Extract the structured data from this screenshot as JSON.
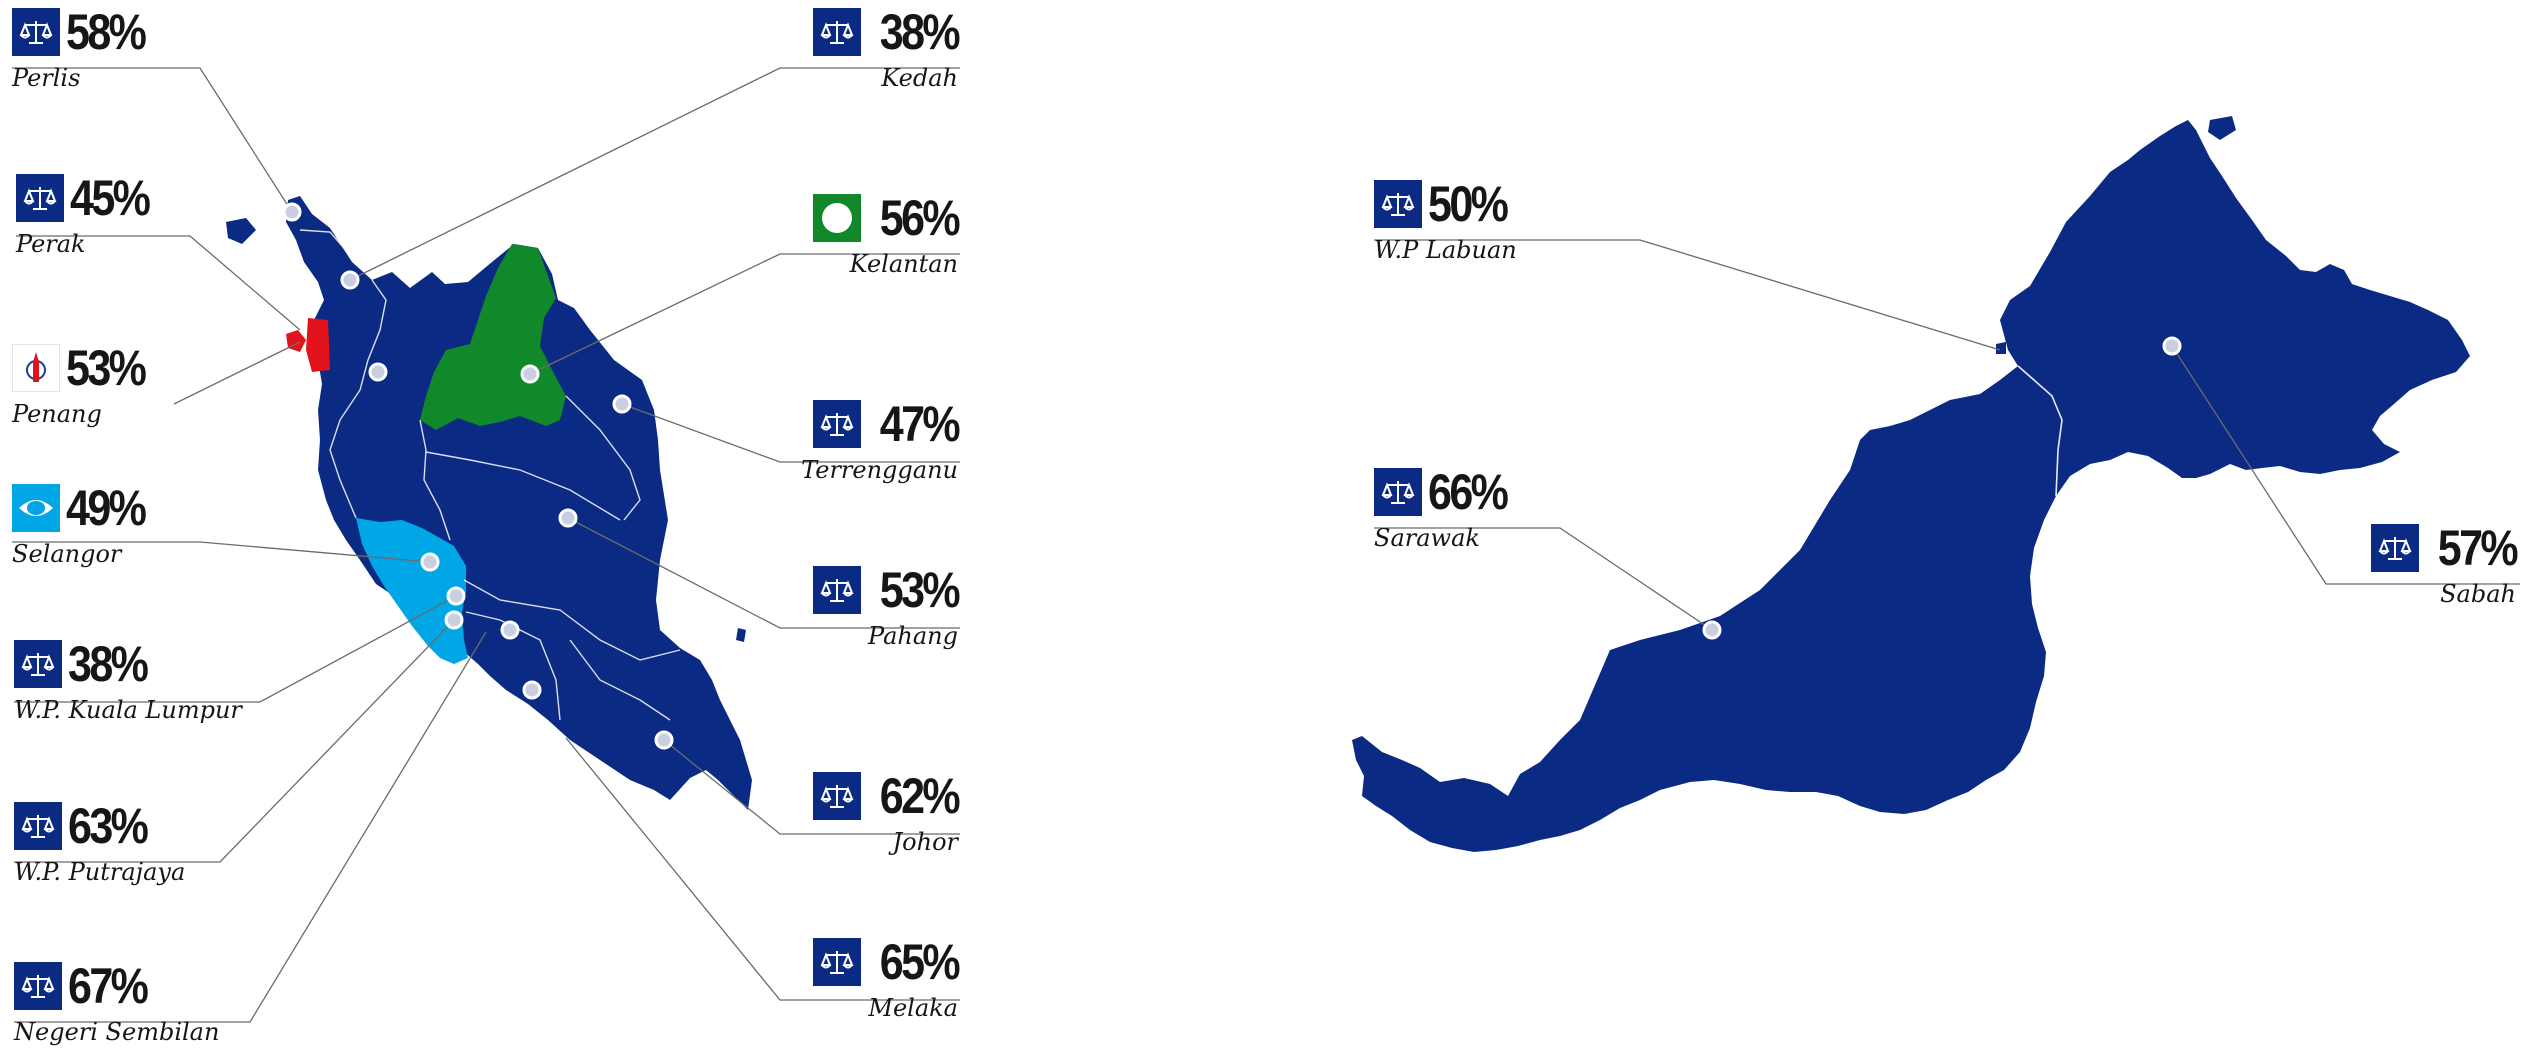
{
  "colors": {
    "bn": "#0b2a83",
    "pas": "#11892a",
    "pkr": "#00a6e6",
    "dap": "#e3131b",
    "leader": "#6b6b6b"
  },
  "legend_parties": {
    "bn": "scales-logo",
    "pas": "moon-logo",
    "dap": "rocket-logo",
    "pkr": "eye-logo"
  },
  "states": [
    {
      "name": "Perlis",
      "pct": "58%",
      "party": "bn"
    },
    {
      "name": "Perak",
      "pct": "45%",
      "party": "bn"
    },
    {
      "name": "Penang",
      "pct": "53%",
      "party": "dap"
    },
    {
      "name": "Selangor",
      "pct": "49%",
      "party": "pkr"
    },
    {
      "name": "W.P. Kuala Lumpur",
      "pct": "38%",
      "party": "bn"
    },
    {
      "name": "W.P. Putrajaya",
      "pct": "63%",
      "party": "bn"
    },
    {
      "name": "Negeri Sembilan",
      "pct": "67%",
      "party": "bn"
    },
    {
      "name": "Kedah",
      "pct": "38%",
      "party": "bn"
    },
    {
      "name": "Kelantan",
      "pct": "56%",
      "party": "pas"
    },
    {
      "name": "Terrengganu",
      "pct": "47%",
      "party": "bn"
    },
    {
      "name": "Pahang",
      "pct": "53%",
      "party": "bn"
    },
    {
      "name": "Johor",
      "pct": "62%",
      "party": "bn"
    },
    {
      "name": "Melaka",
      "pct": "65%",
      "party": "bn"
    },
    {
      "name": "W.P Labuan",
      "pct": "50%",
      "party": "bn"
    },
    {
      "name": "Sarawak",
      "pct": "66%",
      "party": "bn"
    },
    {
      "name": "Sabah",
      "pct": "57%",
      "party": "bn"
    }
  ]
}
